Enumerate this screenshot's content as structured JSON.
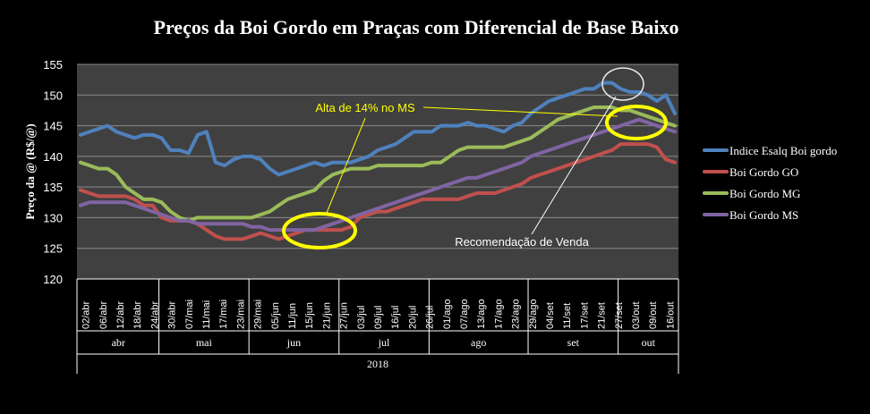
{
  "chart_data": {
    "type": "line",
    "title": "Preços da Boi Gordo em Praças com Diferencial de Base Baixo",
    "ylabel": "Preço da @ (R$/@)",
    "xlabel": "",
    "ylim": [
      120,
      155
    ],
    "yticks": [
      120,
      125,
      130,
      135,
      140,
      145,
      150,
      155
    ],
    "grid": true,
    "legend_position": "right",
    "year_label": "2018",
    "x_tick_labels": [
      "02/abr",
      "06/abr",
      "12/abr",
      "18/abr",
      "24/abr",
      "30/abr",
      "07/mai",
      "11/mai",
      "17/mai",
      "23/mai",
      "29/mai",
      "05/jun",
      "11/jun",
      "15/jun",
      "21/jun",
      "27/jun",
      "03/jul",
      "09/jul",
      "16/jul",
      "20/jul",
      "26/jul",
      "01/ago",
      "07/ago",
      "13/ago",
      "17/ago",
      "23/ago",
      "29/ago",
      "04/set",
      "11/set",
      "17/set",
      "21/set",
      "27/set",
      "03/out",
      "09/out",
      "16/out"
    ],
    "months": [
      {
        "label": "abr",
        "start": 0,
        "end": 9
      },
      {
        "label": "mai",
        "start": 9,
        "end": 19
      },
      {
        "label": "jun",
        "start": 19,
        "end": 29
      },
      {
        "label": "jul",
        "start": 29,
        "end": 39
      },
      {
        "label": "ago",
        "start": 39,
        "end": 50
      },
      {
        "label": "set",
        "start": 50,
        "end": 60
      },
      {
        "label": "out",
        "start": 60,
        "end": 67
      }
    ],
    "series": [
      {
        "name": "Indice Esalq Boi gordo",
        "color": "#4F81BD",
        "values": [
          143.5,
          144,
          144.5,
          145,
          144,
          143.5,
          143,
          143.5,
          143.5,
          143,
          141,
          141,
          140.5,
          143.5,
          144,
          139,
          138.5,
          139.5,
          140,
          140,
          139.5,
          138,
          137,
          137.5,
          138,
          138.5,
          139,
          138.5,
          139,
          139,
          139,
          139.5,
          140,
          141,
          141.5,
          142,
          143,
          144,
          144,
          144,
          145,
          145,
          145,
          145.5,
          145,
          145,
          144.5,
          144,
          145,
          145.5,
          147,
          148,
          149,
          149.5,
          150,
          150.5,
          151,
          151,
          152,
          152,
          151,
          150.5,
          150.5,
          150,
          149,
          150,
          147
        ]
      },
      {
        "name": "Boi Gordo GO",
        "color": "#C0504D",
        "values": [
          134.5,
          134,
          133.5,
          133.5,
          133.5,
          133.5,
          133,
          132,
          132,
          130,
          129.5,
          129.5,
          129.5,
          129,
          128,
          127,
          126.5,
          126.5,
          126.5,
          127,
          127.5,
          127,
          126.5,
          127,
          127.5,
          128,
          128,
          128,
          128,
          128,
          128.5,
          130,
          130.5,
          131,
          131,
          131.5,
          132,
          132.5,
          133,
          133,
          133,
          133,
          133,
          133.5,
          134,
          134,
          134,
          134.5,
          135,
          135.5,
          136.5,
          137,
          137.5,
          138,
          138.5,
          139,
          139.5,
          140,
          140.5,
          141,
          142,
          142,
          142,
          142,
          141.5,
          139.5,
          139
        ]
      },
      {
        "name": "Boi Gordo MG",
        "color": "#9BBB59",
        "values": [
          139,
          138.5,
          138,
          138,
          137,
          135,
          134,
          133,
          133,
          132.5,
          131,
          130,
          129.5,
          130,
          130,
          130,
          130,
          130,
          130,
          130,
          130.5,
          131,
          132,
          133,
          133.5,
          134,
          134.5,
          136,
          137,
          137.5,
          138,
          138,
          138,
          138.5,
          138.5,
          138.5,
          138.5,
          138.5,
          138.5,
          139,
          139,
          140,
          141,
          141.5,
          141.5,
          141.5,
          141.5,
          141.5,
          142,
          142.5,
          143,
          144,
          145,
          146,
          146.5,
          147,
          147.5,
          148,
          148,
          148,
          147.5,
          147.5,
          147,
          146.5,
          146,
          145.5,
          145
        ]
      },
      {
        "name": "Boi Gordo MS",
        "color": "#8064A2",
        "values": [
          132,
          132.5,
          132.5,
          132.5,
          132.5,
          132.5,
          132,
          131.5,
          131,
          130.5,
          130,
          129.5,
          129.5,
          129,
          129,
          129,
          129,
          129,
          129,
          128.5,
          128.5,
          128,
          128,
          128,
          128,
          128,
          128,
          128.5,
          129,
          129.5,
          130,
          130.5,
          131,
          131.5,
          132,
          132.5,
          133,
          133.5,
          134,
          134.5,
          135,
          135.5,
          136,
          136.5,
          136.5,
          137,
          137.5,
          138,
          138.5,
          139,
          140,
          140.5,
          141,
          141.5,
          142,
          142.5,
          143,
          143.5,
          144,
          144.5,
          145,
          145.5,
          146,
          145.5,
          145,
          144.5,
          144
        ]
      }
    ],
    "annotations": [
      {
        "text": "Alta de 14% no MS"
      },
      {
        "text": "Recomendação de Venda"
      }
    ]
  }
}
